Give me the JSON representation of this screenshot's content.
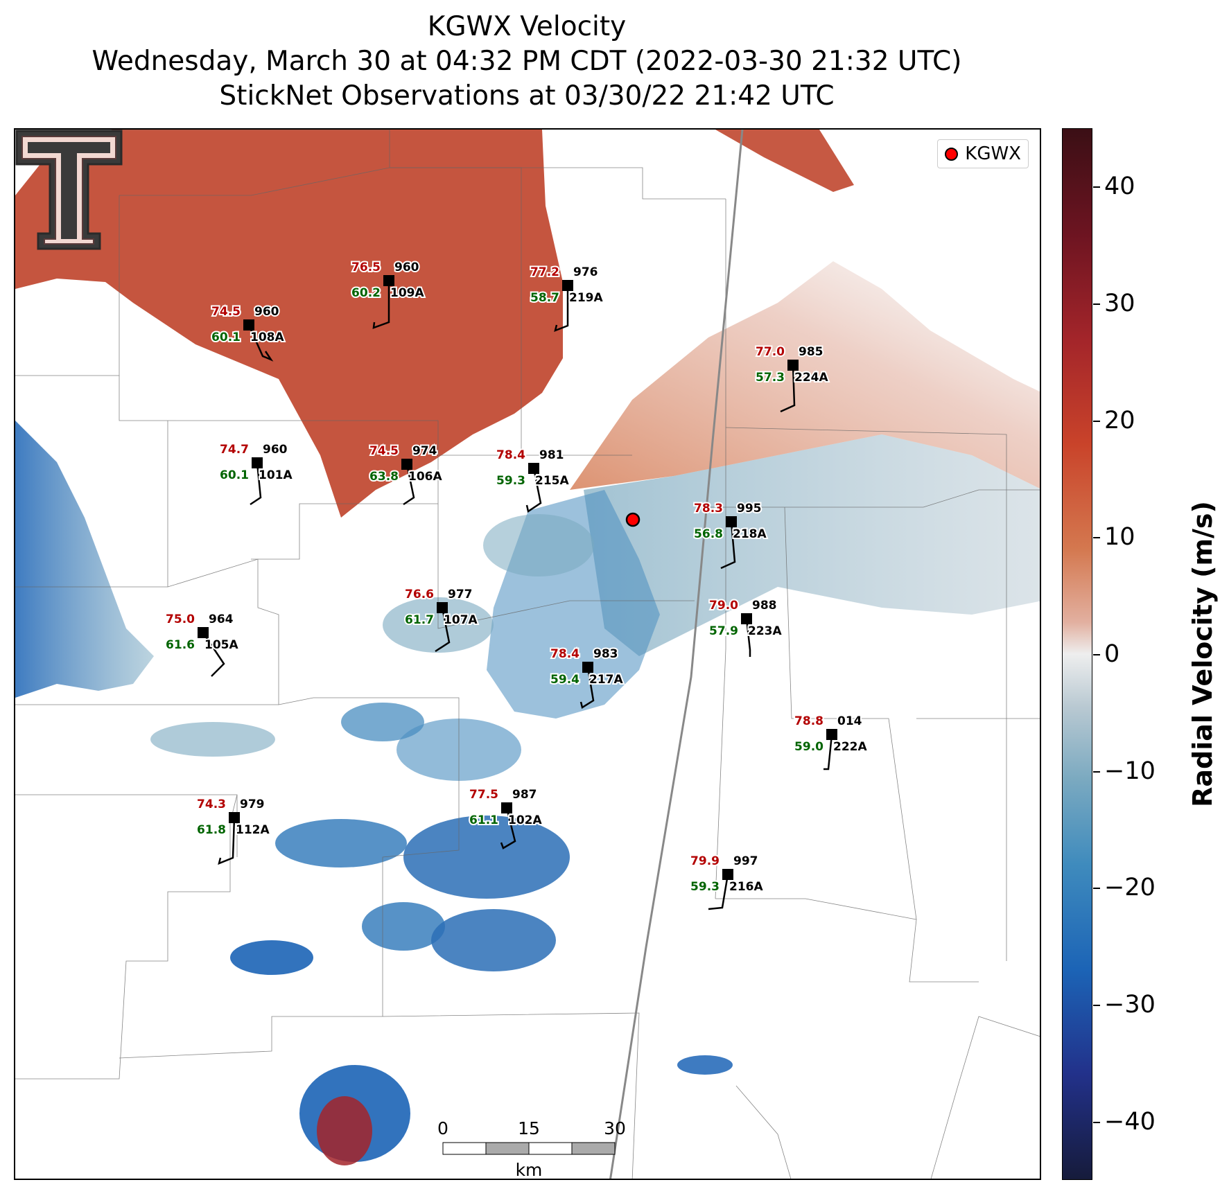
{
  "title_lines": [
    "KGWX Velocity",
    "Wednesday, March 30 at 04:32 PM CDT (2022-03-30 21:32 UTC)",
    "StickNet Observations at 03/30/22 21:42 UTC"
  ],
  "legend": {
    "label": "KGWX",
    "marker_color": "#ff0000"
  },
  "radar_site": {
    "name": "KGWX"
  },
  "colorbar": {
    "label": "Radial Velocity (m/s)",
    "ticks": [
      "40",
      "30",
      "20",
      "10",
      "0",
      "−10",
      "−20",
      "−30",
      "−40"
    ],
    "range": [
      -45,
      45
    ],
    "colors": [
      "#161b3b",
      "#1c64b6",
      "#3f8bbd",
      "#b9c9d2",
      "#eeeeee",
      "#d4784f",
      "#c9432a",
      "#a3252a",
      "#3b0f15"
    ]
  },
  "scale_bar": {
    "labels": [
      "0",
      "15",
      "30"
    ],
    "unit": "km"
  },
  "colors": {
    "temperature": "#b30000",
    "dewpoint": "#006400",
    "outbound": "#c9432a",
    "inbound": "#1c64b6",
    "station": "#000000"
  },
  "stations": [
    {
      "id": "108A",
      "temp": "74.5",
      "dew": "60.1",
      "pres": "960"
    },
    {
      "id": "109A",
      "temp": "76.5",
      "dew": "60.2",
      "pres": "960"
    },
    {
      "id": "219A",
      "temp": "77.2",
      "dew": "58.7",
      "pres": "976"
    },
    {
      "id": "224A",
      "temp": "77.0",
      "dew": "57.3",
      "pres": "985"
    },
    {
      "id": "101A",
      "temp": "74.7",
      "dew": "60.1",
      "pres": "960"
    },
    {
      "id": "106A",
      "temp": "74.5",
      "dew": "63.8",
      "pres": "974"
    },
    {
      "id": "215A",
      "temp": "78.4",
      "dew": "59.3",
      "pres": "981"
    },
    {
      "id": "218A",
      "temp": "78.3",
      "dew": "56.8",
      "pres": "995"
    },
    {
      "id": "107A",
      "temp": "76.6",
      "dew": "61.7",
      "pres": "977"
    },
    {
      "id": "105A",
      "temp": "75.0",
      "dew": "61.6",
      "pres": "964"
    },
    {
      "id": "223A",
      "temp": "79.0",
      "dew": "57.9",
      "pres": "988"
    },
    {
      "id": "217A",
      "temp": "78.4",
      "dew": "59.4",
      "pres": "983"
    },
    {
      "id": "222A",
      "temp": "78.8",
      "dew": "59.0",
      "pres": "014"
    },
    {
      "id": "112A",
      "temp": "74.3",
      "dew": "61.8",
      "pres": "979"
    },
    {
      "id": "102A",
      "temp": "77.5",
      "dew": "61.1",
      "pres": "987"
    },
    {
      "id": "216A",
      "temp": "79.9",
      "dew": "59.3",
      "pres": "997"
    }
  ]
}
